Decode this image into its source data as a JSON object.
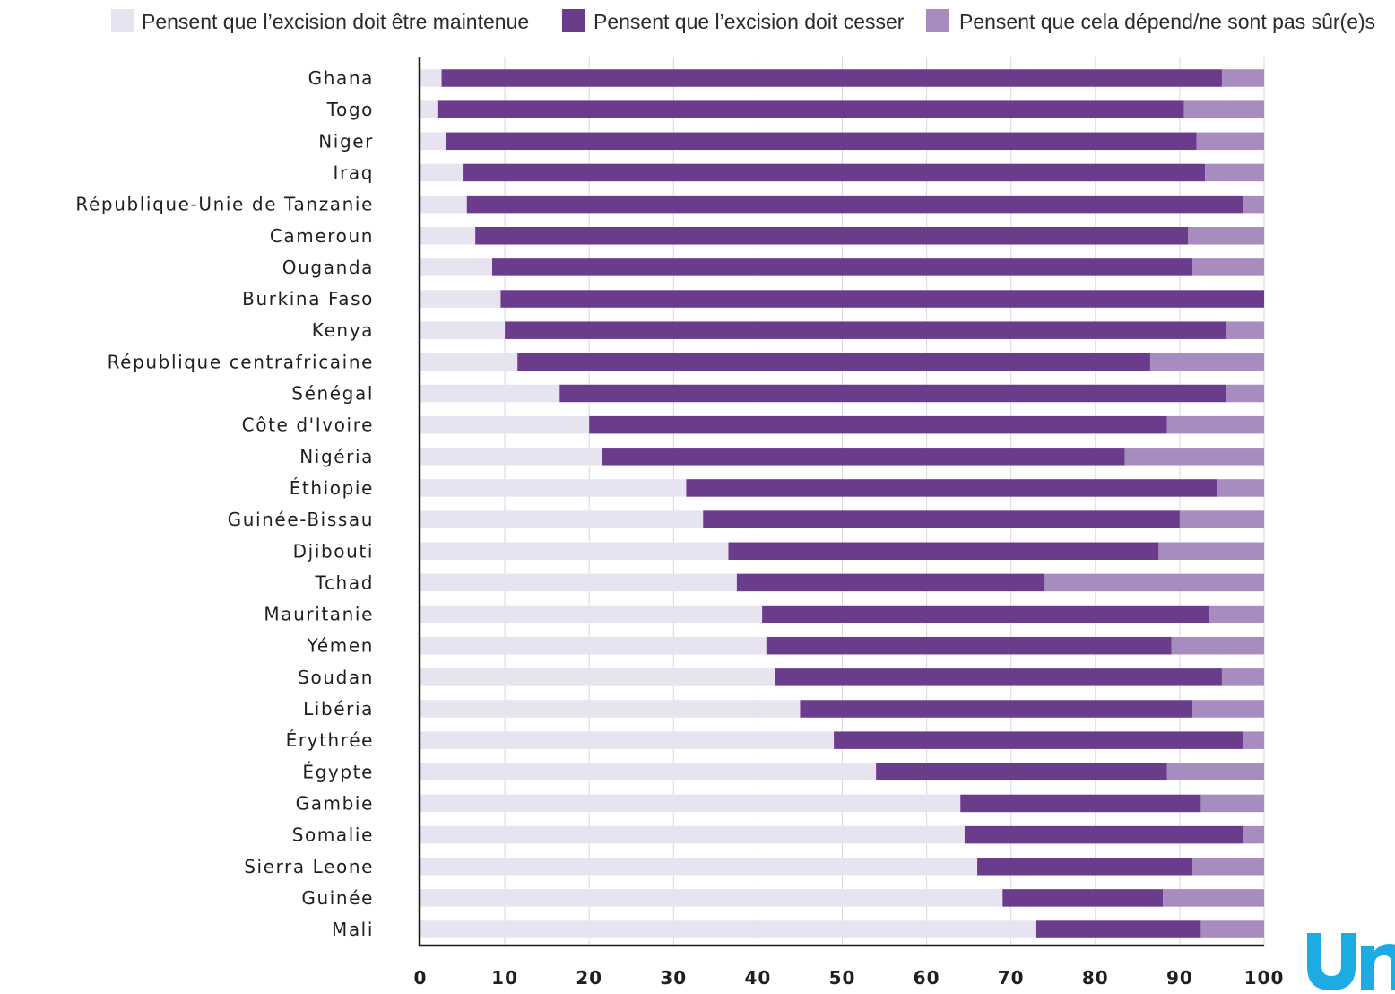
{
  "colors": {
    "maintained": "#e8e3f1",
    "cease": "#6c3c8c",
    "depends": "#a68cbf",
    "logo": "#1cabe2"
  },
  "logo_icon": "unicef-logo-fragment",
  "chart_data": {
    "type": "bar",
    "orientation": "horizontal",
    "stacked": true,
    "categories": [
      "Ghana",
      "Togo",
      "Niger",
      "Iraq",
      "République-Unie de Tanzanie",
      "Cameroun",
      "Ouganda",
      "Burkina Faso",
      "Kenya",
      "République centrafricaine",
      "Sénégal",
      "Côte d'Ivoire",
      "Nigéria",
      "Éthiopie",
      "Guinée-Bissau",
      "Djibouti",
      "Tchad",
      "Mauritanie",
      "Yémen",
      "Soudan",
      "Libéria",
      "Érythrée",
      "Égypte",
      "Gambie",
      "Somalie",
      "Sierra Leone",
      "Guinée",
      "Mali"
    ],
    "series": [
      {
        "name": "Pensent que l’excision doit être maintenue",
        "values": [
          2.5,
          2,
          3,
          5,
          5.5,
          6.5,
          8.5,
          9.5,
          10,
          11.5,
          16.5,
          20,
          21.5,
          31.5,
          33.5,
          36.5,
          37.5,
          40.5,
          41,
          42,
          45,
          49,
          54,
          64,
          64.5,
          66,
          69,
          73
        ]
      },
      {
        "name": "Pensent que l’excision doit cesser",
        "values": [
          92.5,
          88.5,
          89,
          88,
          92,
          84.5,
          83,
          90.5,
          85.5,
          75,
          79,
          68.5,
          62,
          63,
          56.5,
          51,
          36.5,
          53,
          48,
          53,
          46.5,
          48.5,
          34.5,
          28.5,
          33,
          25.5,
          19,
          19.5
        ]
      },
      {
        "name": "Pensent que cela dépend/ne sont pas sûr(e)s",
        "values": [
          5,
          9.5,
          8,
          7,
          2.5,
          9,
          8.5,
          0.9,
          4.5,
          13.5,
          4.5,
          11.5,
          16.5,
          5.5,
          10,
          12.5,
          26,
          6.5,
          11,
          5,
          8.5,
          2.5,
          11.5,
          7.5,
          2.5,
          8.5,
          12,
          7.5
        ]
      }
    ],
    "xlim": [
      0,
      100
    ],
    "xticks": [
      "0",
      "10",
      "20",
      "30",
      "40",
      "50",
      "60",
      "70",
      "80",
      "90",
      "100"
    ],
    "grid": true,
    "legend": "top",
    "title": "",
    "xlabel": "",
    "ylabel": "",
    "watermark_text": "uni"
  }
}
